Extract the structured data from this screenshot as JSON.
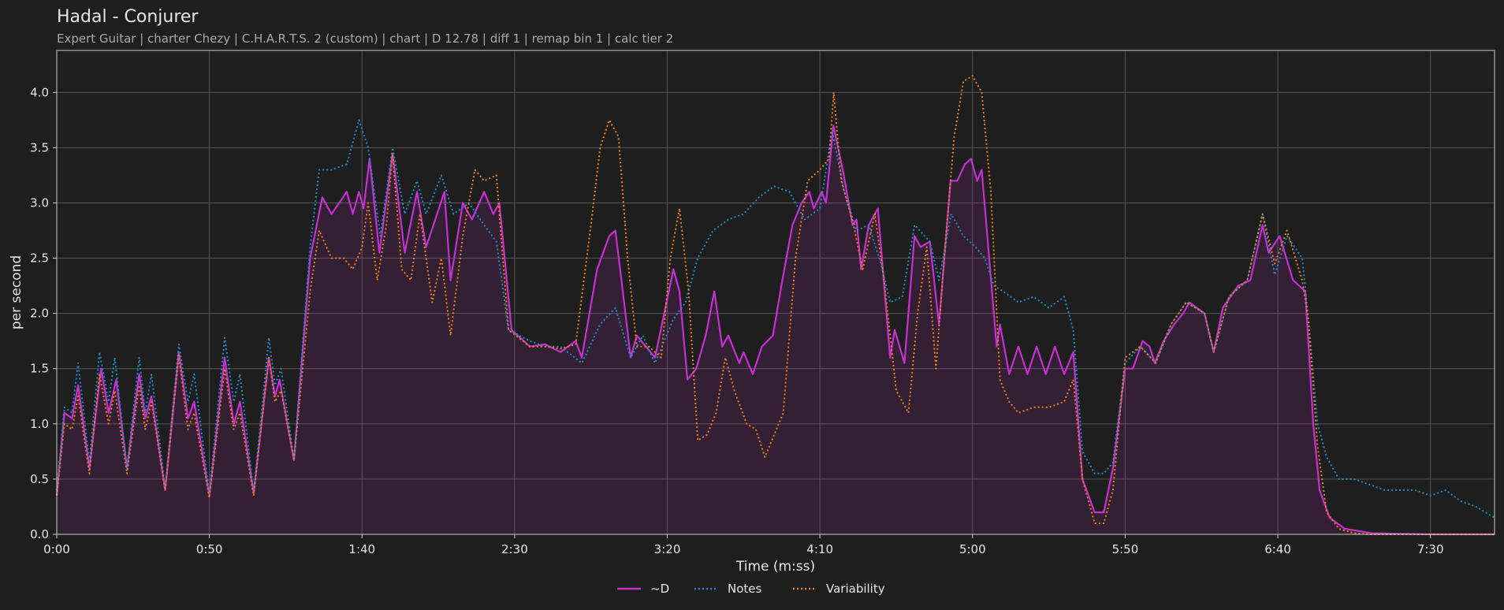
{
  "chart_data": {
    "type": "line",
    "title": "Hadal - Conjurer",
    "subtitle": "Expert Guitar  |  charter Chezy  |  C.H.A.R.T.S. 2 (custom)  |  chart  |  D 12.78  |  diff 1  |  remap bin 1  |  calc tier 2",
    "x_label": "Time (m:ss)",
    "y_label": "per second",
    "xlim": [
      0,
      471
    ],
    "ylim": [
      0,
      4.38
    ],
    "xticks": [
      {
        "value": 0,
        "label": "0:00"
      },
      {
        "value": 50,
        "label": "0:50"
      },
      {
        "value": 100,
        "label": "1:40"
      },
      {
        "value": 150,
        "label": "2:30"
      },
      {
        "value": 200,
        "label": "3:20"
      },
      {
        "value": 250,
        "label": "4:10"
      },
      {
        "value": 300,
        "label": "5:00"
      },
      {
        "value": 350,
        "label": "5:50"
      },
      {
        "value": 400,
        "label": "6:40"
      },
      {
        "value": 450,
        "label": "7:30"
      }
    ],
    "yticks": [
      {
        "value": 0,
        "label": "0.0"
      },
      0.5,
      {
        "value": 1,
        "label": "1.0"
      },
      1.5,
      {
        "value": 2,
        "label": "2.0"
      },
      2.5,
      {
        "value": 3,
        "label": "3.0"
      },
      3.5,
      {
        "value": 4,
        "label": "4.0"
      }
    ],
    "grid": true,
    "legend": "bottom",
    "series": [
      {
        "name": "~D",
        "color": "#c62fd0",
        "style": "solid",
        "fill": true,
        "x": [
          0,
          2.5,
          5,
          7,
          10.7,
          14.5,
          17,
          19.5,
          23,
          27,
          29,
          31,
          35.5,
          40,
          43,
          45,
          50,
          55,
          58,
          60,
          64.5,
          69.5,
          71.5,
          73,
          77.7,
          83,
          87,
          90,
          95,
          97,
          99,
          100.5,
          102.5,
          105.7,
          110,
          114,
          118,
          121,
          127,
          129,
          133,
          136,
          140,
          143,
          145,
          149,
          155,
          160,
          165,
          170,
          172,
          177,
          181,
          183,
          185,
          188,
          190,
          193,
          196,
          202,
          204,
          206.6,
          209.5,
          212.6,
          215.4,
          218,
          220,
          223.6,
          225,
          228,
          231,
          234.6,
          237.7,
          241,
          244,
          246.5,
          248,
          250.6,
          252,
          254.4,
          257.5,
          260.7,
          262,
          263.5,
          266,
          269,
          273,
          274.5,
          277.7,
          281,
          283,
          286,
          289,
          292.8,
          295,
          297.5,
          299.5,
          301.5,
          303,
          307.9,
          309,
          312,
          315,
          318,
          321,
          324,
          327,
          330,
          333,
          336,
          340,
          343,
          346,
          350,
          352.5,
          355.7,
          358,
          359.7,
          362.6,
          366,
          369,
          371,
          376,
          379,
          382,
          387,
          391,
          395,
          397,
          400.6,
          405,
          409,
          411.6,
          413.7,
          417,
          422,
          431,
          450,
          471
        ],
        "values": [
          0.35,
          1.1,
          1.05,
          1.35,
          0.6,
          1.5,
          1.1,
          1.4,
          0.6,
          1.45,
          1.05,
          1.25,
          0.4,
          1.65,
          1.05,
          1.2,
          0.35,
          1.6,
          1.0,
          1.2,
          0.37,
          1.6,
          1.25,
          1.4,
          0.67,
          2.5,
          3.05,
          2.9,
          3.1,
          2.9,
          3.1,
          2.95,
          3.4,
          2.55,
          3.45,
          2.55,
          3.1,
          2.6,
          3.1,
          2.3,
          3.0,
          2.85,
          3.1,
          2.9,
          3.0,
          1.85,
          1.7,
          1.72,
          1.65,
          1.75,
          1.6,
          2.4,
          2.7,
          2.75,
          2.3,
          1.6,
          1.8,
          1.7,
          1.6,
          2.4,
          2.2,
          1.4,
          1.5,
          1.8,
          2.2,
          1.7,
          1.8,
          1.55,
          1.65,
          1.45,
          1.7,
          1.8,
          2.3,
          2.8,
          3.0,
          3.1,
          2.95,
          3.1,
          3.0,
          3.7,
          3.3,
          2.8,
          2.85,
          2.4,
          2.8,
          2.95,
          1.6,
          1.85,
          1.55,
          2.7,
          2.6,
          2.65,
          1.9,
          3.2,
          3.2,
          3.35,
          3.4,
          3.2,
          3.3,
          1.7,
          1.9,
          1.45,
          1.7,
          1.45,
          1.7,
          1.45,
          1.7,
          1.45,
          1.65,
          0.5,
          0.2,
          0.2,
          0.6,
          1.5,
          1.5,
          1.75,
          1.7,
          1.55,
          1.75,
          1.9,
          2.0,
          2.1,
          2.0,
          1.65,
          2.05,
          2.25,
          2.3,
          2.8,
          2.55,
          2.7,
          2.3,
          2.2,
          1.0,
          0.4,
          0.15,
          0.05,
          0.01,
          0,
          0
        ]
      },
      {
        "name": "Notes",
        "color": "#1f8ccc",
        "style": "dotted",
        "fill": false,
        "x": [
          0,
          2.5,
          5,
          7,
          10.7,
          14,
          17,
          19,
          23,
          27,
          29,
          31,
          35.5,
          40,
          43,
          45,
          50,
          55,
          58,
          60,
          64.5,
          69.5,
          71.5,
          73.5,
          77.7,
          83,
          86,
          90,
          95,
          99,
          102,
          106,
          110,
          114,
          118,
          121,
          126,
          130,
          135,
          140,
          144,
          148,
          155,
          160,
          165,
          172,
          178,
          183,
          188,
          192,
          196,
          202,
          206,
          210,
          215,
          220,
          225,
          230,
          235,
          240,
          245,
          250,
          254,
          258,
          262,
          266,
          270,
          273,
          277,
          281,
          286,
          289,
          293,
          297,
          301,
          304,
          307,
          310,
          315,
          320,
          325,
          330,
          333,
          336,
          340,
          343,
          346,
          350,
          355,
          360,
          365,
          370,
          376,
          379,
          384,
          390,
          395,
          399,
          403,
          408,
          410,
          413,
          416,
          420,
          425,
          430,
          435,
          440,
          445,
          450,
          455,
          460,
          465,
          471
        ],
        "values": [
          0.4,
          1.15,
          1.1,
          1.55,
          0.65,
          1.65,
          1.2,
          1.6,
          0.6,
          1.6,
          1.1,
          1.45,
          0.42,
          1.72,
          1.2,
          1.45,
          0.37,
          1.78,
          1.2,
          1.45,
          0.38,
          1.78,
          1.35,
          1.5,
          0.68,
          2.6,
          3.3,
          3.3,
          3.35,
          3.75,
          3.5,
          2.7,
          3.5,
          2.9,
          3.2,
          2.9,
          3.25,
          2.9,
          3.0,
          2.8,
          2.65,
          1.85,
          1.75,
          1.7,
          1.7,
          1.55,
          1.9,
          2.05,
          1.6,
          1.8,
          1.55,
          1.95,
          2.1,
          2.5,
          2.75,
          2.85,
          2.9,
          3.05,
          3.15,
          3.1,
          2.85,
          2.95,
          3.65,
          3.1,
          2.75,
          2.8,
          2.45,
          2.1,
          2.15,
          2.8,
          2.65,
          2.3,
          2.9,
          2.7,
          2.6,
          2.5,
          2.25,
          2.2,
          2.1,
          2.15,
          2.05,
          2.15,
          1.85,
          0.75,
          0.55,
          0.55,
          0.65,
          1.55,
          1.7,
          1.55,
          1.9,
          2.1,
          2.0,
          1.65,
          2.15,
          2.3,
          2.9,
          2.35,
          2.7,
          2.5,
          1.95,
          1.0,
          0.7,
          0.5,
          0.5,
          0.45,
          0.4,
          0.4,
          0.4,
          0.35,
          0.4,
          0.3,
          0.25,
          0.15
        ]
      },
      {
        "name": "Variability",
        "color": "#f07e14",
        "style": "dotted",
        "fill": false,
        "x": [
          0,
          2.5,
          5,
          7,
          10.7,
          14,
          17,
          19,
          23,
          27,
          29,
          31,
          35.5,
          40,
          43,
          45,
          50,
          55,
          58,
          60,
          64.5,
          69.5,
          71.5,
          73.5,
          77.7,
          83,
          86,
          90,
          94,
          97,
          100,
          102,
          105,
          108,
          110,
          113,
          116,
          119,
          123,
          126,
          129,
          133,
          137,
          140,
          144,
          148,
          155,
          160,
          165,
          170,
          175,
          178,
          181,
          184,
          187,
          190,
          194,
          198,
          201,
          204,
          207,
          210,
          213,
          216,
          219,
          222,
          226,
          229,
          232,
          235,
          238,
          242,
          246,
          250,
          253,
          254.5,
          257,
          261,
          264,
          268,
          271,
          275,
          279,
          282,
          285,
          288,
          291,
          294,
          297,
          300,
          303,
          306,
          309,
          312,
          315,
          320,
          325,
          330,
          333,
          336,
          340,
          343,
          346,
          350,
          355,
          360,
          365,
          370,
          376,
          379,
          384,
          390,
          395,
          399,
          403,
          408,
          410,
          413,
          416,
          420,
          425,
          430,
          471
        ],
        "values": [
          0.35,
          1.0,
          0.95,
          1.25,
          0.55,
          1.45,
          1.0,
          1.3,
          0.55,
          1.35,
          0.95,
          1.2,
          0.4,
          1.62,
          0.95,
          1.1,
          0.33,
          1.5,
          0.95,
          1.1,
          0.35,
          1.6,
          1.2,
          1.3,
          0.67,
          2.2,
          2.75,
          2.5,
          2.5,
          2.4,
          2.6,
          3.0,
          2.3,
          2.8,
          3.45,
          2.4,
          2.3,
          2.9,
          2.1,
          2.5,
          1.8,
          2.7,
          3.3,
          3.2,
          3.25,
          1.85,
          1.7,
          1.7,
          1.68,
          1.72,
          2.8,
          3.5,
          3.75,
          3.6,
          2.5,
          1.7,
          1.7,
          1.6,
          2.5,
          2.95,
          2.2,
          0.85,
          0.9,
          1.1,
          1.6,
          1.3,
          1.0,
          0.95,
          0.7,
          0.9,
          1.1,
          2.5,
          3.2,
          3.3,
          3.4,
          4.0,
          3.2,
          2.8,
          2.4,
          2.9,
          2.3,
          1.3,
          1.1,
          2.0,
          2.6,
          1.5,
          2.6,
          3.6,
          4.1,
          4.15,
          4.0,
          3.1,
          1.4,
          1.2,
          1.1,
          1.15,
          1.15,
          1.2,
          1.4,
          0.5,
          0.1,
          0.1,
          0.4,
          1.6,
          1.7,
          1.55,
          1.9,
          2.1,
          2.0,
          1.65,
          2.15,
          2.3,
          2.9,
          2.45,
          2.75,
          2.3,
          1.95,
          0.8,
          0.2,
          0.05,
          0.01,
          0,
          0
        ]
      }
    ]
  }
}
